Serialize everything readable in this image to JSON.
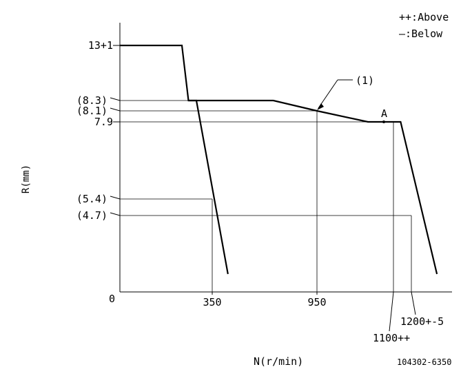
{
  "chart_data": {
    "type": "line",
    "xlabel": "N(r/min)",
    "ylabel": "R(mm)",
    "figure_code": "104302-6350",
    "legend": {
      "above": "++:Above",
      "below": "—:Below",
      "placement": "top-right"
    },
    "origin_label": "0",
    "x_tick_labels": [
      {
        "x": 350,
        "text": "350"
      },
      {
        "x": 950,
        "text": "950"
      },
      {
        "x": 1100,
        "text": "1100++"
      },
      {
        "x": 1200,
        "text": "1200+-5"
      }
    ],
    "y_tick_labels": [
      {
        "y": 13,
        "text": "13+1"
      },
      {
        "y": 8.3,
        "text": "(8.3)"
      },
      {
        "y": 8.1,
        "text": "(8.1)"
      },
      {
        "y": 7.9,
        "text": "7.9"
      },
      {
        "y": 5.4,
        "text": "(5.4)"
      },
      {
        "y": 4.7,
        "text": "(4.7)"
      }
    ],
    "annotations": {
      "point_label": "A",
      "callout_label": "(1)"
    },
    "series": [
      {
        "values": [
          [
            0,
            13
          ],
          [
            235,
            13
          ],
          [
            260,
            8.3
          ],
          [
            290,
            8.3
          ],
          [
            440,
            1.1
          ]
        ]
      },
      {
        "values": [
          [
            260,
            8.3
          ],
          [
            700,
            8.3
          ],
          [
            950,
            8.1
          ],
          [
            1050,
            7.9
          ],
          [
            1100,
            7.9
          ],
          [
            1140,
            7.9
          ],
          [
            1270,
            1.1
          ]
        ]
      }
    ],
    "reference_points": [
      {
        "x": 350,
        "y": 5.4
      },
      {
        "x": 950,
        "y": 8.1
      },
      {
        "x": 1100,
        "y": 7.9
      },
      {
        "x": 1200,
        "y": 4.7
      }
    ],
    "xlim": [
      0,
      1300
    ],
    "ylim": [
      0,
      15
    ],
    "grid": false
  }
}
